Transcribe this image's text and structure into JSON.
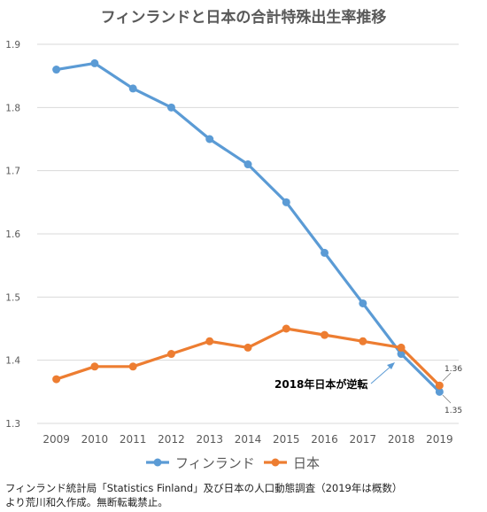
{
  "chart_data": {
    "type": "line",
    "title": "フィンランドと日本の合計特殊出生率推移",
    "xlabel": "",
    "ylabel": "",
    "categories": [
      "2009",
      "2010",
      "2011",
      "2012",
      "2013",
      "2014",
      "2015",
      "2016",
      "2017",
      "2018",
      "2019"
    ],
    "ylim": [
      1.3,
      1.9
    ],
    "yticks": [
      "1.3",
      "1.4",
      "1.5",
      "1.6",
      "1.7",
      "1.8",
      "1.9"
    ],
    "grid": true,
    "legend_position": "bottom",
    "series": [
      {
        "name": "フィンランド",
        "color": "#5B9BD5",
        "values": [
          1.86,
          1.87,
          1.83,
          1.8,
          1.75,
          1.71,
          1.65,
          1.57,
          1.49,
          1.41,
          1.35
        ]
      },
      {
        "name": "日本",
        "color": "#ED7D31",
        "values": [
          1.37,
          1.39,
          1.39,
          1.41,
          1.43,
          1.42,
          1.45,
          1.44,
          1.43,
          1.42,
          1.36
        ]
      }
    ],
    "annotations": {
      "crossover": "2018年日本が逆転",
      "japan_last": "1.36",
      "finland_last": "1.35"
    }
  },
  "source": {
    "line1": "フィンランド統計局「Statistics Finland」及び日本の人口動態調査（2019年は概数）",
    "line2": "より荒川和久作成。無断転載禁止。"
  }
}
